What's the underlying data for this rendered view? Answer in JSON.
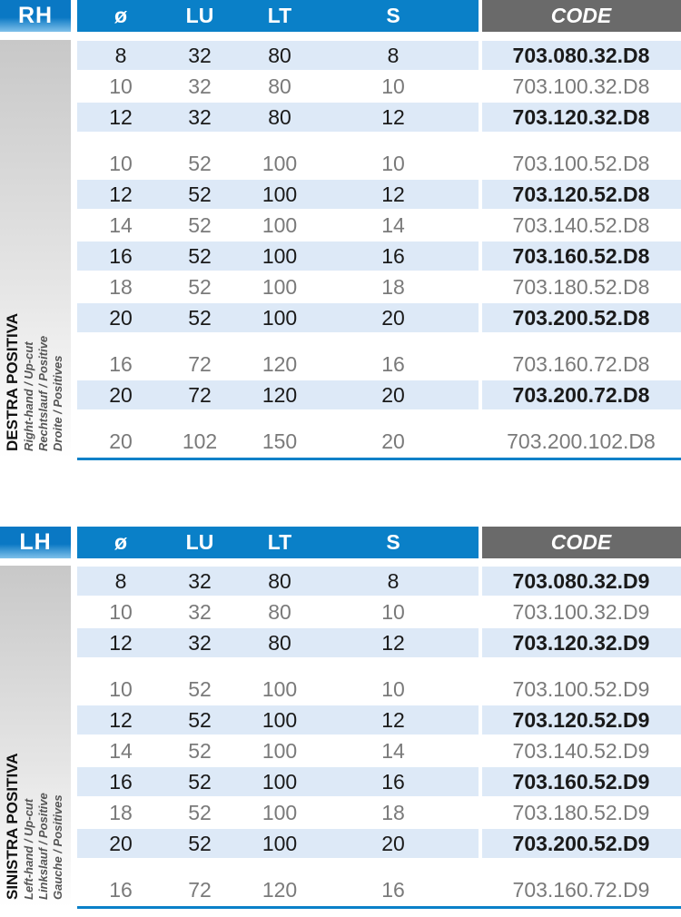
{
  "columns": {
    "dia": "ø",
    "lu": "LU",
    "lt": "LT",
    "s": "S",
    "code": "CODE"
  },
  "colors": {
    "header_blue": "#0a80c8",
    "code_header_gray": "#6a6a6a",
    "row_band": "#dde9f7"
  },
  "sections": [
    {
      "hand": "RH",
      "title": "DESTRA POSITIVA",
      "subtitles": [
        "Right-hand / Up-cut",
        "Rechtslauf / Positive",
        "Droite / Positives"
      ],
      "groups": [
        [
          {
            "dia": "8",
            "lu": "32",
            "lt": "80",
            "s": "8",
            "code": "703.080.32.D8",
            "bold": true
          },
          {
            "dia": "10",
            "lu": "32",
            "lt": "80",
            "s": "10",
            "code": "703.100.32.D8",
            "bold": false
          },
          {
            "dia": "12",
            "lu": "32",
            "lt": "80",
            "s": "12",
            "code": "703.120.32.D8",
            "bold": true
          }
        ],
        [
          {
            "dia": "10",
            "lu": "52",
            "lt": "100",
            "s": "10",
            "code": "703.100.52.D8",
            "bold": false
          },
          {
            "dia": "12",
            "lu": "52",
            "lt": "100",
            "s": "12",
            "code": "703.120.52.D8",
            "bold": true
          },
          {
            "dia": "14",
            "lu": "52",
            "lt": "100",
            "s": "14",
            "code": "703.140.52.D8",
            "bold": false
          },
          {
            "dia": "16",
            "lu": "52",
            "lt": "100",
            "s": "16",
            "code": "703.160.52.D8",
            "bold": true
          },
          {
            "dia": "18",
            "lu": "52",
            "lt": "100",
            "s": "18",
            "code": "703.180.52.D8",
            "bold": false
          },
          {
            "dia": "20",
            "lu": "52",
            "lt": "100",
            "s": "20",
            "code": "703.200.52.D8",
            "bold": true
          }
        ],
        [
          {
            "dia": "16",
            "lu": "72",
            "lt": "120",
            "s": "16",
            "code": "703.160.72.D8",
            "bold": false
          },
          {
            "dia": "20",
            "lu": "72",
            "lt": "120",
            "s": "20",
            "code": "703.200.72.D8",
            "bold": true
          }
        ],
        [
          {
            "dia": "20",
            "lu": "102",
            "lt": "150",
            "s": "20",
            "code": "703.200.102.D8",
            "bold": false
          }
        ]
      ]
    },
    {
      "hand": "LH",
      "title": "SINISTRA POSITIVA",
      "subtitles": [
        "Left-hand / Up-cut",
        "Linkslauf / Positive",
        "Gauche / Positives"
      ],
      "groups": [
        [
          {
            "dia": "8",
            "lu": "32",
            "lt": "80",
            "s": "8",
            "code": "703.080.32.D9",
            "bold": true
          },
          {
            "dia": "10",
            "lu": "32",
            "lt": "80",
            "s": "10",
            "code": "703.100.32.D9",
            "bold": false
          },
          {
            "dia": "12",
            "lu": "32",
            "lt": "80",
            "s": "12",
            "code": "703.120.32.D9",
            "bold": true
          }
        ],
        [
          {
            "dia": "10",
            "lu": "52",
            "lt": "100",
            "s": "10",
            "code": "703.100.52.D9",
            "bold": false
          },
          {
            "dia": "12",
            "lu": "52",
            "lt": "100",
            "s": "12",
            "code": "703.120.52.D9",
            "bold": true
          },
          {
            "dia": "14",
            "lu": "52",
            "lt": "100",
            "s": "14",
            "code": "703.140.52.D9",
            "bold": false
          },
          {
            "dia": "16",
            "lu": "52",
            "lt": "100",
            "s": "16",
            "code": "703.160.52.D9",
            "bold": true
          },
          {
            "dia": "18",
            "lu": "52",
            "lt": "100",
            "s": "18",
            "code": "703.180.52.D9",
            "bold": false
          },
          {
            "dia": "20",
            "lu": "52",
            "lt": "100",
            "s": "20",
            "code": "703.200.52.D9",
            "bold": true
          }
        ],
        [
          {
            "dia": "16",
            "lu": "72",
            "lt": "120",
            "s": "16",
            "code": "703.160.72.D9",
            "bold": false
          }
        ]
      ]
    }
  ]
}
